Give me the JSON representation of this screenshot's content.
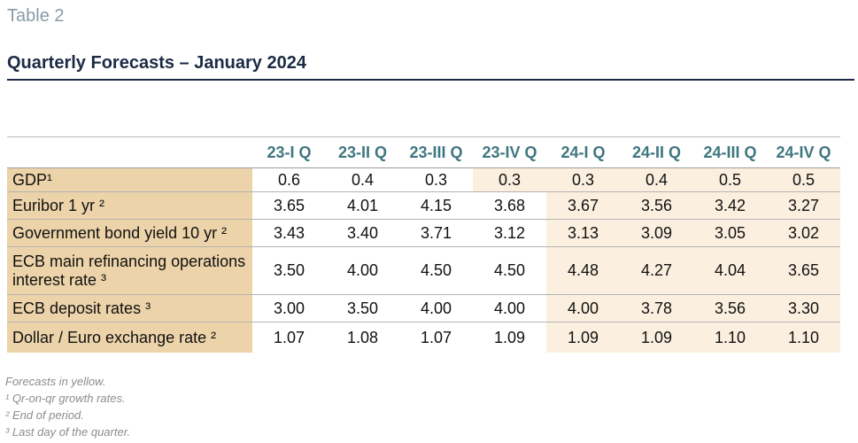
{
  "header": {
    "table_label": "Table 2",
    "title": "Quarterly Forecasts – January 2024"
  },
  "table": {
    "columns": [
      "23-I Q",
      "23-II Q",
      "23-III Q",
      "23-IV Q",
      "24-I Q",
      "24-II Q",
      "24-III Q",
      "24-IV Q"
    ],
    "rows": [
      {
        "label": "GDP¹",
        "values": [
          "0.6",
          "0.4",
          "0.3",
          "0.3",
          "0.3",
          "0.4",
          "0.5",
          "0.5"
        ]
      },
      {
        "label": "Euribor 1 yr ²",
        "values": [
          "3.65",
          "4.01",
          "4.15",
          "3.68",
          "3.67",
          "3.56",
          "3.42",
          "3.27"
        ]
      },
      {
        "label": "Government bond yield 10 yr ²",
        "values": [
          "3.43",
          "3.40",
          "3.71",
          "3.12",
          "3.13",
          "3.09",
          "3.05",
          "3.02"
        ]
      },
      {
        "label": "ECB main refinancing operations interest rate ³",
        "values": [
          "3.50",
          "4.00",
          "4.50",
          "4.50",
          "4.48",
          "4.27",
          "4.04",
          "3.65"
        ]
      },
      {
        "label": "ECB deposit rates ³",
        "values": [
          "3.00",
          "3.50",
          "4.00",
          "4.00",
          "4.00",
          "3.78",
          "3.56",
          "3.30"
        ]
      },
      {
        "label": "Dollar / Euro exchange rate ²",
        "values": [
          "1.07",
          "1.08",
          "1.07",
          "1.09",
          "1.09",
          "1.09",
          "1.10",
          "1.10"
        ]
      }
    ]
  },
  "notes": [
    "Forecasts in yellow.",
    "¹ Qr-on-qr growth rates.",
    "² End of period.",
    "³ Last day of the quarter."
  ],
  "colors": {
    "label_bg": "#ecd3a9",
    "forecast_bg": "#fbf0df",
    "header_text": "#3f7780",
    "title_text": "#1c2b45"
  }
}
